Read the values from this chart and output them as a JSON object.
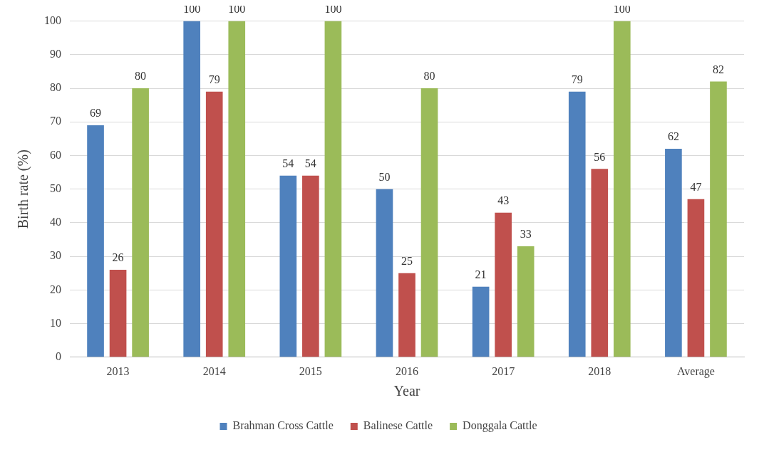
{
  "chart_data": {
    "type": "bar",
    "xlabel": "Year",
    "ylabel": "Birth rate (%)",
    "categories": [
      "2013",
      "2014",
      "2015",
      "2016",
      "2017",
      "2018",
      "Average"
    ],
    "series": [
      {
        "name": "Brahman Cross Cattle",
        "color": "#4f81bd",
        "values": [
          69,
          100,
          54,
          50,
          21,
          79,
          62
        ]
      },
      {
        "name": "Balinese Cattle",
        "color": "#c0504d",
        "values": [
          26,
          79,
          54,
          25,
          43,
          56,
          47
        ]
      },
      {
        "name": "Donggala Cattle",
        "color": "#9bbb59",
        "values": [
          80,
          100,
          100,
          80,
          33,
          100,
          82
        ]
      }
    ],
    "ylim": [
      0,
      100
    ],
    "yticks": [
      0,
      10,
      20,
      30,
      40,
      50,
      60,
      70,
      80,
      90,
      100
    ],
    "grid": "y",
    "legend": "bottom",
    "data_labels": true
  }
}
